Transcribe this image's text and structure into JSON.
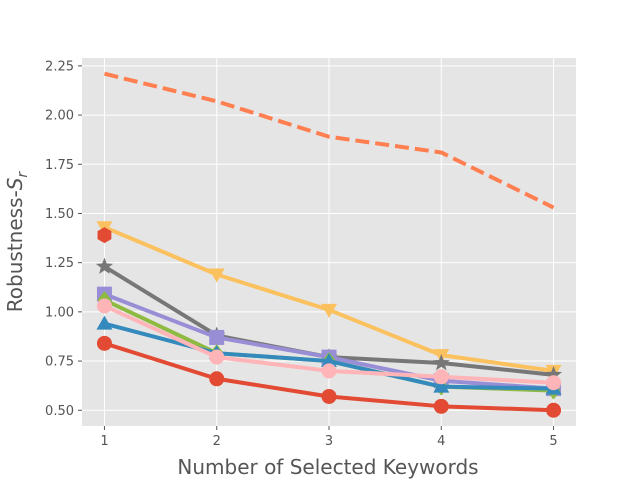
{
  "chart_data": {
    "type": "line",
    "title": "",
    "xlabel": "Number of Selected Keywords",
    "ylabel_main": "Robustness-",
    "ylabel_math": "S",
    "ylabel_sub": "r",
    "x": [
      1,
      2,
      3,
      4,
      5
    ],
    "x_ticks": [
      "1",
      "2",
      "3",
      "4",
      "5"
    ],
    "xlim": [
      0.8,
      5.2
    ],
    "y_ticks": [
      "0.50",
      "0.75",
      "1.00",
      "1.25",
      "1.50",
      "1.75",
      "2.00",
      "2.25"
    ],
    "ylim": [
      0.42,
      2.29
    ],
    "grid": true,
    "background": "#e5e5e5",
    "series": [
      {
        "color": "#ff7f50",
        "marker": "none",
        "dashed": true,
        "values": [
          2.21,
          2.07,
          1.89,
          1.81,
          1.53
        ]
      },
      {
        "color": "#fbc15e",
        "marker": "triangle-down",
        "dashed": false,
        "values": [
          1.43,
          1.19,
          1.01,
          0.78,
          0.7
        ]
      },
      {
        "color": "#777777",
        "marker": "star",
        "dashed": false,
        "values": [
          1.23,
          0.88,
          0.77,
          0.74,
          0.68
        ]
      },
      {
        "color": "#988ed5",
        "marker": "square",
        "dashed": false,
        "values": [
          1.09,
          0.87,
          0.77,
          0.65,
          0.61
        ]
      },
      {
        "color": "#8eba42",
        "marker": "diamond",
        "dashed": false,
        "values": [
          1.06,
          0.79,
          0.75,
          0.62,
          0.6
        ]
      },
      {
        "color": "#348abd",
        "marker": "triangle-up",
        "dashed": false,
        "values": [
          0.94,
          0.79,
          0.75,
          0.62,
          0.61
        ]
      },
      {
        "color": "#ffb5b8",
        "marker": "circle",
        "dashed": false,
        "values": [
          1.03,
          0.77,
          0.7,
          0.67,
          0.64
        ]
      },
      {
        "color": "#e24a33",
        "marker": "circle",
        "dashed": false,
        "values": [
          0.84,
          0.66,
          0.57,
          0.52,
          0.5
        ]
      },
      {
        "color": "#e24a33",
        "marker": "hexagon",
        "dashed": false,
        "values": [
          1.39,
          null,
          null,
          null,
          null
        ]
      }
    ]
  }
}
